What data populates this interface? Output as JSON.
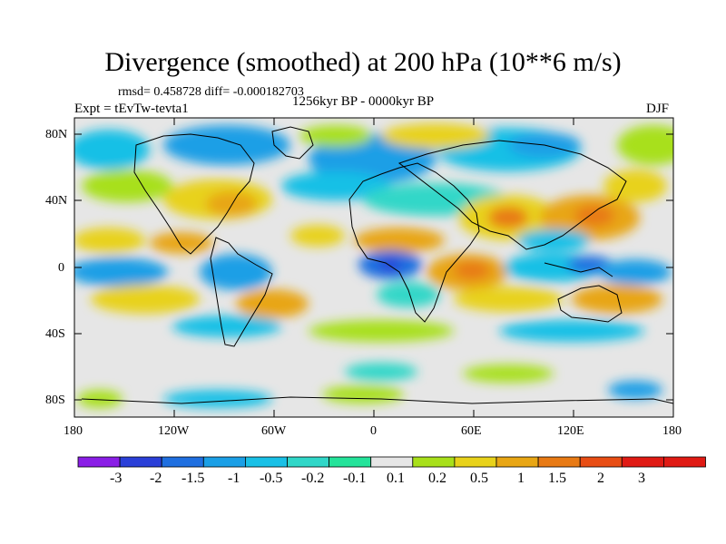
{
  "header": {
    "title": "Divergence (smoothed) at 200 hPa (10**6 m/s)",
    "stats": "rmsd= 0.458728 diff= -0.000182703",
    "experiment": "Expt = tEvTw-tevta1",
    "period": "1256kyr BP - 0000kyr BP",
    "season": "DJF"
  },
  "axes": {
    "lat_labels": [
      "80N",
      "40N",
      "0",
      "40S",
      "80S"
    ],
    "lon_labels": [
      "180",
      "120W",
      "60W",
      "0",
      "60E",
      "120E",
      "180"
    ]
  },
  "colorbar": {
    "labels": [
      "-3",
      "-2",
      "-1.5",
      "-1",
      "-0.5",
      "-0.2",
      "-0.1",
      "0.1",
      "0.2",
      "0.5",
      "1",
      "1.5",
      "2",
      "3"
    ],
    "colors": [
      "#8a1ee6",
      "#2a3fd8",
      "#1f6fe0",
      "#1a9fe6",
      "#19c0e6",
      "#30d7c8",
      "#24e39a",
      "#e6e6e6",
      "#a8e01a",
      "#e8d21a",
      "#e8a614",
      "#e87a14",
      "#e84d14",
      "#e01a14"
    ]
  },
  "palette": {
    "ocean_neutral": "#e6e6e6",
    "coast": "#000000"
  }
}
